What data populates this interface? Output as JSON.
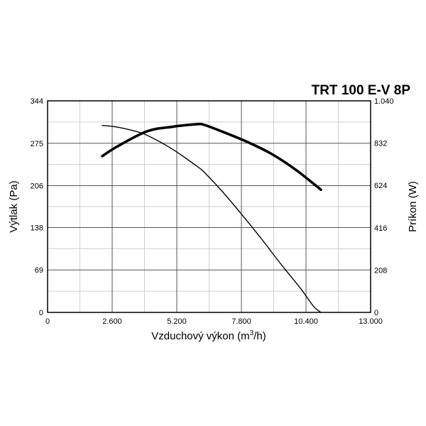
{
  "chart_data": {
    "type": "line",
    "title": "TRT 100 E-V 8P",
    "xlabel": "Vzduchový výkon (m",
    "xlabel_sup": "3",
    "xlabel_end": "/h)",
    "ylabel": "Výtlak (Pa)",
    "y2label": "Príkon (W)",
    "xlim": [
      0,
      13000
    ],
    "ylim": [
      0,
      344
    ],
    "y2lim": [
      0,
      1040
    ],
    "x_ticks": [
      {
        "value": 0,
        "label": "0"
      },
      {
        "value": 2600,
        "label": "2.600"
      },
      {
        "value": 5200,
        "label": "5.200"
      },
      {
        "value": 7800,
        "label": "7.800"
      },
      {
        "value": 10400,
        "label": "10.400"
      },
      {
        "value": 13000,
        "label": "13.000"
      }
    ],
    "y_ticks": [
      {
        "value": 0,
        "label": "0"
      },
      {
        "value": 69,
        "label": "69"
      },
      {
        "value": 138,
        "label": "138"
      },
      {
        "value": 206,
        "label": "206"
      },
      {
        "value": 275,
        "label": "275"
      },
      {
        "value": 344,
        "label": "344"
      }
    ],
    "y2_ticks": [
      {
        "value": 0,
        "label": "0"
      },
      {
        "value": 208,
        "label": "208"
      },
      {
        "value": 416,
        "label": "416"
      },
      {
        "value": 624,
        "label": "624"
      },
      {
        "value": 832,
        "label": "832"
      },
      {
        "value": 1040,
        "label": "1.040"
      }
    ],
    "grid": true,
    "series": [
      {
        "axis": "left",
        "style": "thin",
        "points": [
          [
            2200,
            304
          ],
          [
            2700,
            302
          ],
          [
            3400,
            296
          ],
          [
            4000,
            288
          ],
          [
            5000,
            266
          ],
          [
            6000,
            238
          ],
          [
            6300,
            228
          ],
          [
            7000,
            198
          ],
          [
            7800,
            160
          ],
          [
            8600,
            120
          ],
          [
            9400,
            78
          ],
          [
            10200,
            38
          ],
          [
            10700,
            10
          ],
          [
            11000,
            0
          ]
        ]
      },
      {
        "axis": "right",
        "style": "thick",
        "points": [
          [
            2200,
            768
          ],
          [
            2800,
            815
          ],
          [
            4000,
            890
          ],
          [
            5000,
            912
          ],
          [
            6000,
            925
          ],
          [
            6300,
            922
          ],
          [
            7000,
            890
          ],
          [
            8000,
            840
          ],
          [
            9000,
            780
          ],
          [
            10000,
            700
          ],
          [
            11000,
            603
          ]
        ]
      }
    ]
  }
}
